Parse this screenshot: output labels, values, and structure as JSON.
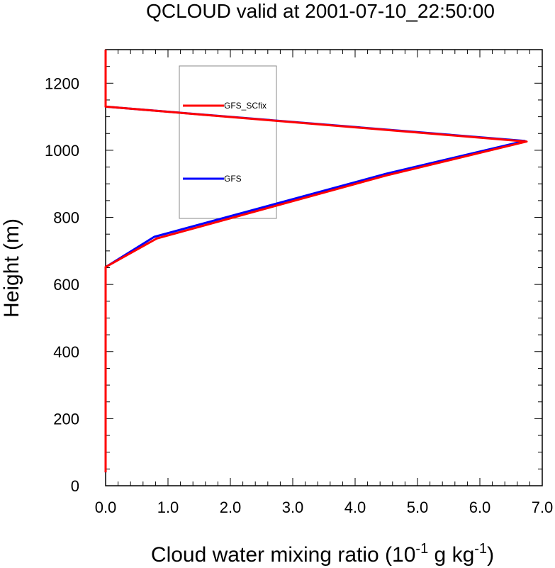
{
  "chart_data": {
    "type": "line",
    "title": "QCLOUD valid at 2001-07-10_22:50:00",
    "xlabel": {
      "main": "Cloud water mixing ratio (10",
      "exp1": "-1",
      "mid": " g kg",
      "exp2": "-1",
      "end": ")"
    },
    "ylabel": "Height (m)",
    "xlim": [
      0.0,
      7.0
    ],
    "ylim": [
      0,
      1300
    ],
    "xticks": [
      "0.0",
      "1.0",
      "2.0",
      "3.0",
      "4.0",
      "5.0",
      "6.0",
      "7.0"
    ],
    "xtick_values": [
      0,
      1,
      2,
      3,
      4,
      5,
      6,
      7
    ],
    "yticks": [
      "0",
      "200",
      "400",
      "600",
      "800",
      "1000",
      "1200"
    ],
    "ytick_values": [
      0,
      200,
      400,
      600,
      800,
      1000,
      1200
    ],
    "grid": false,
    "legend_position": "top-left inside",
    "series": [
      {
        "name": "GFS",
        "color": "#0000ff",
        "x": [
          0.0,
          0.0,
          0.78,
          4.5,
          6.72,
          0.0,
          0.0
        ],
        "y": [
          40,
          652,
          742,
          930,
          1028,
          1130,
          1300
        ]
      },
      {
        "name": "GFS_SCfix",
        "color": "#ff0000",
        "x": [
          0.0,
          0.0,
          0.82,
          4.5,
          6.75,
          0.0,
          0.0
        ],
        "y": [
          40,
          652,
          737,
          925,
          1026,
          1130,
          1300
        ]
      }
    ]
  }
}
